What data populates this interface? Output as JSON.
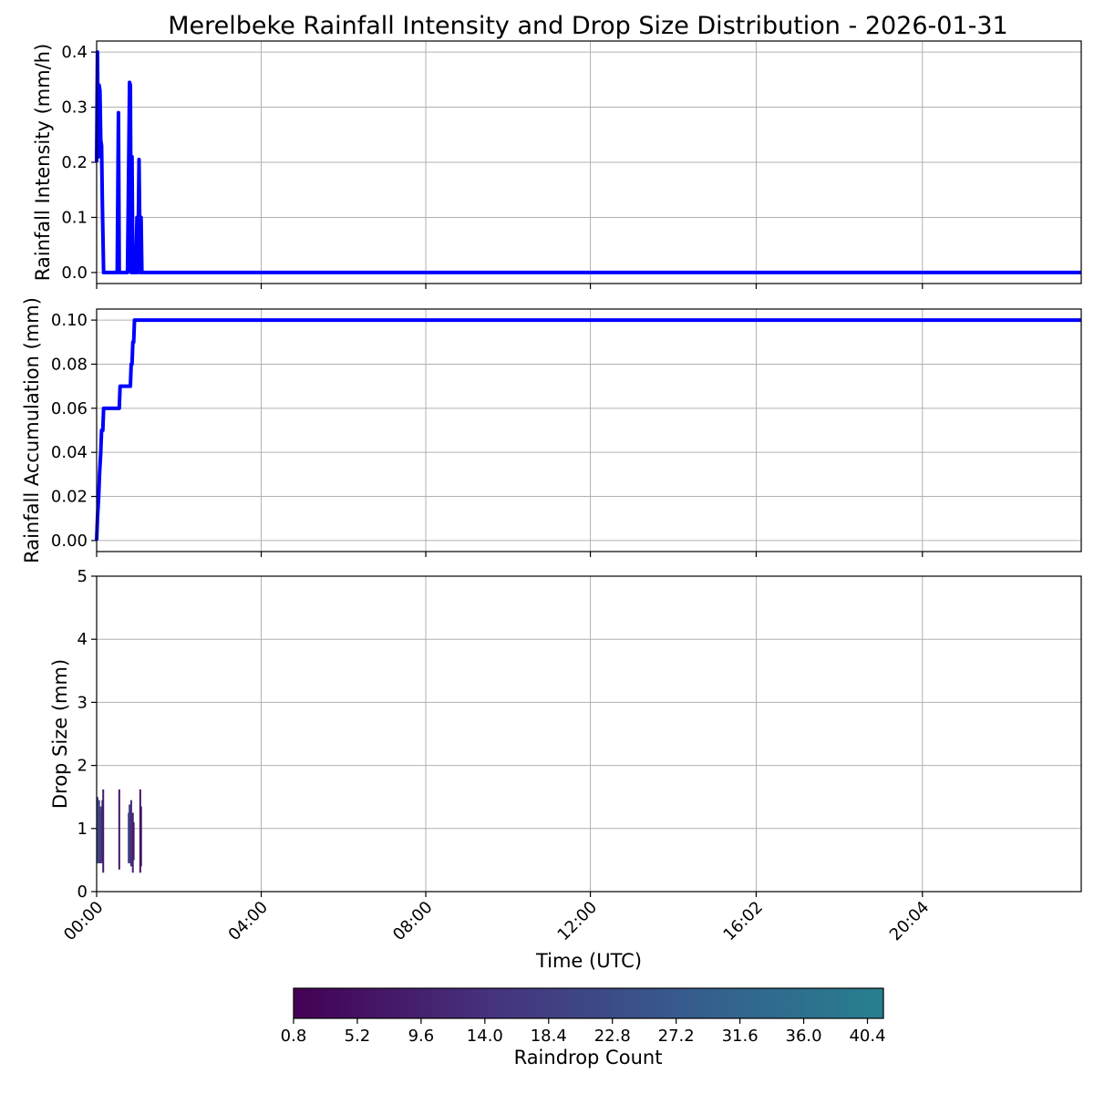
{
  "figure": {
    "title": "Merelbeke Rainfall Intensity and Drop Size Distribution - 2026-01-31"
  },
  "chart_data": [
    {
      "type": "line",
      "ylabel": "Rainfall Intensity (mm/h)",
      "xlim": [
        0,
        23.93
      ],
      "ylim": [
        -0.02,
        0.42
      ],
      "y_ticks": [
        "0.0",
        "0.1",
        "0.2",
        "0.3",
        "0.4"
      ],
      "y_tick_values": [
        0.0,
        0.1,
        0.2,
        0.3,
        0.4
      ],
      "grid": true,
      "color": "#0000ff",
      "series": [
        {
          "x": [
            0.0,
            0.02,
            0.04,
            0.06,
            0.08,
            0.1,
            0.12,
            0.14,
            0.17,
            0.2,
            0.23,
            0.25,
            0.3,
            0.35,
            0.4,
            0.45,
            0.5,
            0.53,
            0.55,
            0.58,
            0.6,
            0.65,
            0.7,
            0.75,
            0.78,
            0.8,
            0.82,
            0.84,
            0.86,
            0.88,
            0.9,
            0.95,
            0.98,
            1.0,
            1.03,
            1.06,
            1.08,
            1.1,
            1.2,
            2.0,
            6.0,
            12.0,
            18.0,
            23.93
          ],
          "y": [
            0.2,
            0.4,
            0.21,
            0.34,
            0.33,
            0.24,
            0.23,
            0.12,
            0.0,
            0.0,
            0.0,
            0.0,
            0.0,
            0.0,
            0.0,
            0.0,
            0.0,
            0.29,
            0.0,
            0.0,
            0.0,
            0.0,
            0.0,
            0.0,
            0.2,
            0.345,
            0.34,
            0.0,
            0.21,
            0.0,
            0.0,
            0.0,
            0.1,
            0.0,
            0.205,
            0.0,
            0.1,
            0.0,
            0.0,
            0.0,
            0.0,
            0.0,
            0.0,
            0.0
          ]
        }
      ]
    },
    {
      "type": "line",
      "ylabel": "Rainfall Accumulation (mm)",
      "xlim": [
        0,
        23.93
      ],
      "ylim": [
        -0.005,
        0.105
      ],
      "y_ticks": [
        "0.00",
        "0.02",
        "0.04",
        "0.06",
        "0.08",
        "0.10"
      ],
      "y_tick_values": [
        0.0,
        0.02,
        0.04,
        0.06,
        0.08,
        0.1
      ],
      "grid": true,
      "color": "#0000ff",
      "series": [
        {
          "x": [
            0.0,
            0.02,
            0.05,
            0.07,
            0.1,
            0.12,
            0.15,
            0.17,
            0.55,
            0.57,
            0.82,
            0.84,
            0.86,
            0.88,
            0.9,
            0.92,
            0.94,
            23.93
          ],
          "y": [
            0.0,
            0.01,
            0.02,
            0.03,
            0.04,
            0.05,
            0.05,
            0.06,
            0.06,
            0.07,
            0.07,
            0.08,
            0.08,
            0.09,
            0.09,
            0.1,
            0.1,
            0.1
          ]
        }
      ]
    },
    {
      "type": "heatmap",
      "ylabel": "Drop Size (mm)",
      "xlabel": "Time (UTC)",
      "xlim": [
        0,
        23.93
      ],
      "ylim": [
        0,
        5
      ],
      "y_ticks": [
        "0",
        "1",
        "2",
        "3",
        "4",
        "5"
      ],
      "y_tick_values": [
        0,
        1,
        2,
        3,
        4,
        5
      ],
      "x_ticks": [
        "00:00",
        "04:00",
        "08:00",
        "12:00",
        "16:02",
        "20:04"
      ],
      "x_tick_values": [
        0,
        4.0,
        8.0,
        12.0,
        16.03,
        20.07
      ],
      "grid": true,
      "cells": [
        {
          "t": 0.02,
          "d0": 0.45,
          "d1": 1.5,
          "count": 18
        },
        {
          "t": 0.04,
          "d0": 0.45,
          "d1": 1.35,
          "count": 24
        },
        {
          "t": 0.06,
          "d0": 0.45,
          "d1": 1.45,
          "count": 20
        },
        {
          "t": 0.08,
          "d0": 0.45,
          "d1": 1.3,
          "count": 16
        },
        {
          "t": 0.1,
          "d0": 0.5,
          "d1": 1.35,
          "count": 22
        },
        {
          "t": 0.12,
          "d0": 0.45,
          "d1": 1.25,
          "count": 14
        },
        {
          "t": 0.14,
          "d0": 0.5,
          "d1": 1.45,
          "count": 12
        },
        {
          "t": 0.16,
          "d0": 0.3,
          "d1": 1.62,
          "count": 8
        },
        {
          "t": 0.55,
          "d0": 0.35,
          "d1": 1.62,
          "count": 6
        },
        {
          "t": 0.78,
          "d0": 0.45,
          "d1": 1.25,
          "count": 14
        },
        {
          "t": 0.8,
          "d0": 0.45,
          "d1": 1.38,
          "count": 20
        },
        {
          "t": 0.82,
          "d0": 0.5,
          "d1": 1.3,
          "count": 18
        },
        {
          "t": 0.84,
          "d0": 0.4,
          "d1": 1.45,
          "count": 12
        },
        {
          "t": 0.86,
          "d0": 0.45,
          "d1": 1.2,
          "count": 16
        },
        {
          "t": 0.88,
          "d0": 0.3,
          "d1": 1.25,
          "count": 10
        },
        {
          "t": 0.9,
          "d0": 0.5,
          "d1": 1.1,
          "count": 8
        },
        {
          "t": 1.06,
          "d0": 0.3,
          "d1": 1.62,
          "count": 5
        },
        {
          "t": 1.08,
          "d0": 0.4,
          "d1": 1.35,
          "count": 7
        }
      ]
    }
  ],
  "colorbar": {
    "label": "Raindrop Count",
    "min": 0.8,
    "max": 41.5,
    "ticks": [
      "0.8",
      "5.2",
      "9.6",
      "14.0",
      "18.4",
      "22.8",
      "27.2",
      "31.6",
      "36.0",
      "40.4"
    ],
    "tick_values": [
      0.8,
      5.2,
      9.6,
      14.0,
      18.4,
      22.8,
      27.2,
      31.6,
      36.0,
      40.4
    ],
    "colors": [
      "#440154",
      "#46327e",
      "#365c8d",
      "#277f8e"
    ]
  }
}
